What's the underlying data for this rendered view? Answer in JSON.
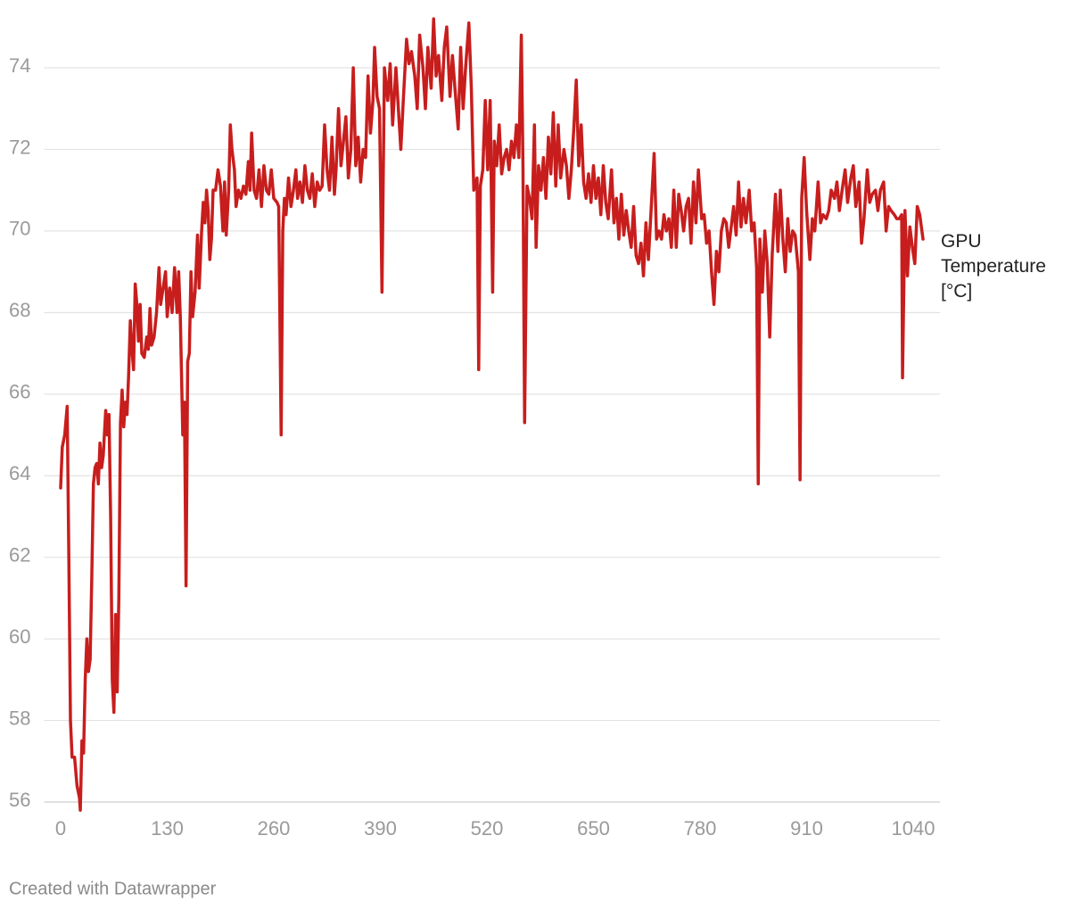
{
  "chart_data": {
    "type": "line",
    "credit": "Created with Datawrapper",
    "xlim": [
      -20,
      1073
    ],
    "xticks": [
      0,
      130,
      260,
      390,
      520,
      650,
      780,
      910,
      1040
    ],
    "ylim": [
      55.6,
      75.4
    ],
    "yticks": [
      56,
      58,
      60,
      62,
      64,
      66,
      68,
      70,
      72,
      74
    ],
    "grid": true,
    "x": [
      0,
      2,
      5,
      8,
      10,
      12,
      14,
      17,
      20,
      23,
      24,
      26,
      28,
      30,
      32,
      34,
      36,
      38,
      40,
      42,
      44,
      46,
      48,
      50,
      52,
      55,
      57,
      59,
      61,
      63,
      65,
      67,
      69,
      71,
      73,
      75,
      77,
      79,
      81,
      83,
      85,
      87,
      89,
      91,
      93,
      95,
      97,
      99,
      102,
      105,
      107,
      109,
      111,
      114,
      117,
      120,
      122,
      125,
      128,
      130,
      133,
      136,
      139,
      142,
      144,
      146,
      149,
      151,
      153,
      155,
      157,
      159,
      161,
      164,
      167,
      169,
      172,
      174,
      176,
      178,
      180,
      182,
      184,
      186,
      189,
      192,
      195,
      198,
      200,
      202,
      205,
      207,
      209,
      212,
      214,
      217,
      220,
      223,
      226,
      229,
      231,
      233,
      236,
      239,
      242,
      245,
      248,
      251,
      254,
      257,
      260,
      264,
      266,
      269,
      271,
      273,
      275,
      278,
      281,
      284,
      287,
      289,
      292,
      295,
      298,
      301,
      304,
      307,
      310,
      313,
      316,
      319,
      322,
      325,
      328,
      331,
      334,
      336,
      339,
      342,
      345,
      348,
      351,
      354,
      357,
      360,
      363,
      366,
      369,
      372,
      375,
      378,
      381,
      383,
      386,
      389,
      392,
      395,
      399,
      402,
      405,
      409,
      412,
      415,
      418,
      422,
      425,
      428,
      432,
      435,
      438,
      442,
      445,
      448,
      452,
      455,
      458,
      461,
      465,
      468,
      471,
      475,
      478,
      481,
      485,
      488,
      491,
      494,
      498,
      501,
      504,
      508,
      510,
      512,
      515,
      518,
      521,
      524,
      527,
      529,
      532,
      535,
      538,
      541,
      544,
      547,
      550,
      553,
      556,
      559,
      562,
      564,
      566,
      569,
      572,
      575,
      578,
      580,
      583,
      586,
      589,
      592,
      595,
      598,
      601,
      604,
      607,
      610,
      614,
      617,
      620,
      623,
      626,
      629,
      632,
      635,
      638,
      641,
      644,
      647,
      650,
      653,
      656,
      659,
      662,
      665,
      668,
      672,
      675,
      678,
      681,
      684,
      687,
      690,
      693,
      696,
      699,
      702,
      705,
      708,
      711,
      714,
      717,
      720,
      724,
      727,
      730,
      733,
      736,
      739,
      742,
      745,
      748,
      751,
      754,
      757,
      760,
      763,
      766,
      769,
      772,
      775,
      778,
      782,
      785,
      788,
      791,
      794,
      797,
      800,
      803,
      806,
      809,
      812,
      815,
      818,
      821,
      824,
      827,
      830,
      833,
      836,
      840,
      843,
      846,
      849,
      851,
      853,
      856,
      859,
      862,
      865,
      868,
      872,
      875,
      878,
      881,
      884,
      887,
      890,
      893,
      896,
      900,
      902,
      904,
      907,
      910,
      914,
      917,
      920,
      924,
      927,
      930,
      934,
      937,
      940,
      944,
      947,
      950,
      954,
      957,
      960,
      964,
      967,
      970,
      974,
      977,
      980,
      984,
      987,
      990,
      994,
      997,
      1000,
      1004,
      1007,
      1010,
      1013,
      1017,
      1020,
      1023,
      1026,
      1027,
      1030,
      1033,
      1036,
      1039,
      1042,
      1045,
      1048,
      1052
    ],
    "series": [
      {
        "name": "GPU Temperature [°C]",
        "color": "#c71e1d",
        "values": [
          63.7,
          64.7,
          65.0,
          65.7,
          62,
          58,
          57.1,
          57.1,
          56.4,
          56.1,
          55.8,
          57.5,
          57.2,
          59,
          60,
          59.2,
          59.5,
          61.5,
          63.8,
          64.2,
          64.3,
          63.8,
          64.8,
          64.2,
          64.5,
          65.6,
          65.0,
          65.5,
          63,
          59,
          58.2,
          60.6,
          58.7,
          61,
          65.3,
          66.1,
          65.2,
          65.8,
          65.5,
          66.5,
          67.8,
          67.1,
          66.6,
          68.7,
          68.2,
          67.3,
          68.2,
          67.0,
          66.9,
          67.4,
          67.1,
          68.1,
          67.2,
          67.4,
          68.0,
          69.1,
          68.2,
          68.6,
          69.0,
          67.9,
          68.6,
          68.0,
          69.1,
          68.0,
          69.0,
          67.9,
          65.0,
          65.8,
          61.3,
          66.8,
          67.0,
          69.0,
          67.9,
          68.5,
          69.9,
          68.6,
          70.0,
          70.7,
          70.2,
          71.0,
          70.5,
          69.3,
          69.8,
          71.0,
          71.0,
          71.5,
          71.1,
          70.0,
          71.2,
          69.9,
          71.0,
          72.6,
          72.0,
          71.5,
          70.6,
          71.0,
          70.8,
          71.1,
          70.9,
          71.7,
          71.0,
          72.4,
          71.0,
          70.8,
          71.5,
          70.6,
          71.6,
          71.0,
          70.9,
          71.5,
          70.8,
          70.7,
          70.6,
          65.0,
          70.0,
          70.8,
          70.4,
          71.3,
          70.6,
          71.0,
          71.5,
          70.8,
          71.2,
          70.7,
          71.6,
          71.0,
          70.8,
          71.4,
          70.6,
          71.2,
          71.0,
          71.1,
          72.6,
          71.5,
          71.0,
          72.3,
          70.9,
          71.5,
          73.0,
          71.6,
          72.2,
          72.8,
          71.3,
          72.0,
          74.0,
          71.6,
          72.3,
          71.2,
          72.0,
          71.8,
          73.8,
          72.4,
          73.2,
          74.5,
          73.3,
          73.0,
          68.5,
          74.0,
          73.2,
          74.1,
          72.6,
          74.0,
          73.0,
          72.0,
          73.2,
          74.7,
          74.1,
          74.4,
          73.8,
          73.0,
          74.8,
          74.0,
          73.0,
          74.5,
          73.5,
          75.2,
          73.8,
          74.3,
          73.2,
          74.5,
          75.0,
          73.3,
          74.3,
          73.5,
          72.5,
          74.5,
          73.0,
          74.0,
          75.1,
          73.5,
          71.0,
          71.3,
          66.6,
          71.1,
          71.5,
          73.2,
          71.5,
          73.2,
          68.5,
          72.2,
          71.6,
          72.6,
          71.4,
          71.8,
          72.0,
          71.5,
          72.2,
          71.8,
          72.6,
          71.8,
          74.8,
          71.6,
          65.3,
          71.1,
          70.8,
          70.3,
          72.6,
          69.6,
          71.6,
          71.0,
          71.8,
          70.8,
          72.3,
          71.4,
          72.9,
          71.1,
          72.6,
          71.3,
          72.0,
          71.6,
          70.8,
          71.5,
          72.5,
          73.7,
          71.6,
          72.6,
          71.2,
          70.8,
          71.4,
          70.7,
          71.6,
          70.8,
          71.3,
          70.4,
          71.6,
          70.7,
          70.3,
          71.5,
          70.2,
          70.8,
          69.8,
          70.9,
          69.9,
          70.5,
          70.0,
          69.6,
          70.6,
          69.4,
          69.2,
          69.7,
          68.9,
          70.2,
          69.3,
          70.4,
          71.9,
          69.8,
          70.0,
          69.8,
          70.4,
          70.0,
          70.3,
          69.6,
          71.0,
          69.6,
          70.9,
          70.5,
          70.0,
          70.6,
          70.8,
          69.7,
          71.2,
          70.2,
          71.5,
          70.3,
          70.4,
          69.7,
          70.0,
          69.0,
          68.2,
          69.5,
          69.0,
          70.0,
          70.3,
          70.2,
          69.6,
          70.1,
          70.6,
          69.9,
          71.2,
          70.1,
          70.8,
          70.2,
          71.0,
          70.0,
          70.2,
          69.1,
          63.8,
          69.8,
          68.5,
          70.0,
          69.2,
          67.4,
          69.4,
          70.9,
          69.5,
          71.0,
          69.8,
          69.0,
          70.3,
          69.5,
          70.0,
          69.9,
          69.0,
          63.9,
          70.8,
          71.8,
          70.5,
          69.3,
          70.3,
          70.0,
          71.2,
          70.2,
          70.4,
          70.3,
          70.5,
          71.0,
          70.8,
          71.2,
          70.5,
          71.1,
          71.5,
          70.7,
          71.3,
          71.6,
          70.6,
          71.2,
          69.7,
          70.3,
          71.5,
          70.7,
          70.9,
          71.0,
          70.5,
          71.0,
          71.2,
          70.0,
          70.6,
          70.5,
          70.4,
          70.3,
          70.3,
          70.4,
          66.4,
          70.5,
          68.9,
          70.1,
          69.6,
          69.2,
          70.6,
          70.4,
          69.8
        ]
      }
    ]
  }
}
